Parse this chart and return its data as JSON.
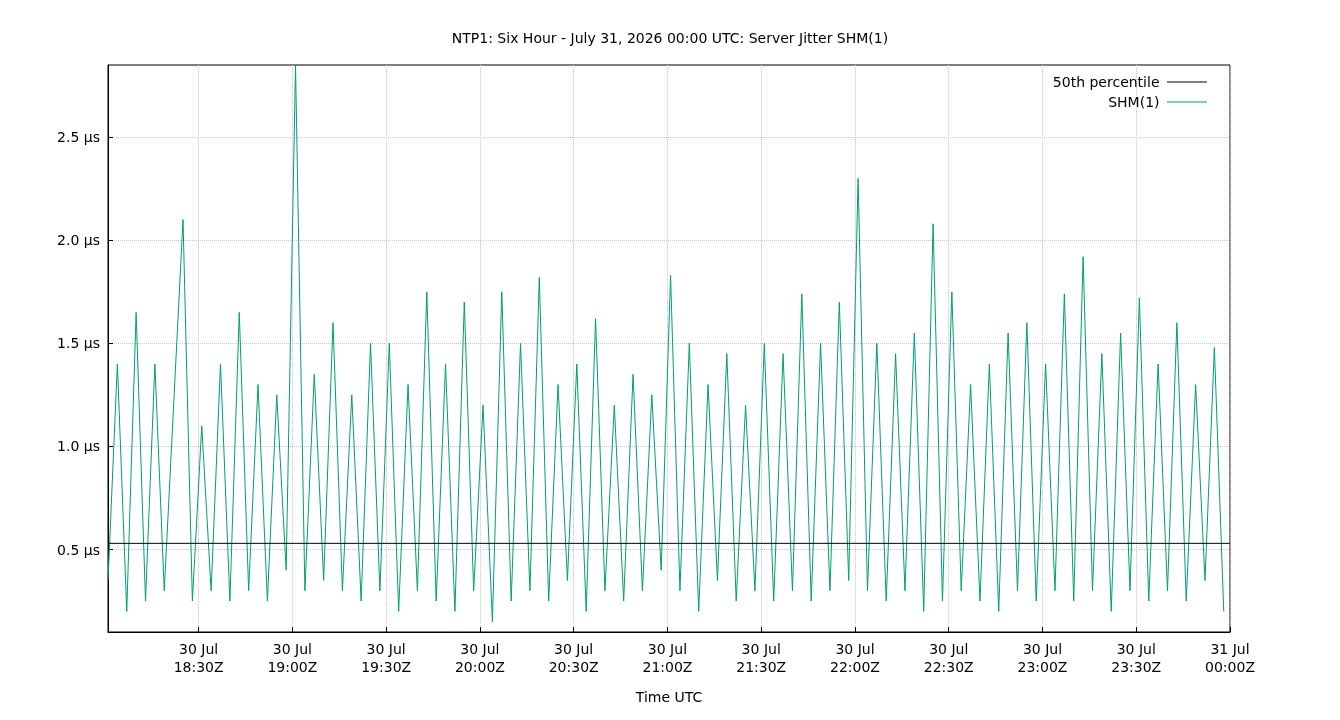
{
  "chart_data": {
    "type": "line",
    "title": "NTP1: Six Hour - July 31, 2026 00:00 UTC: Server Jitter SHM(1)",
    "xlabel": "Time UTC",
    "xlim": [
      "2026-07-30T18:01",
      "2026-07-31T00:00"
    ],
    "xticks": [
      {
        "value": "2026-07-30T18:30",
        "label": "30 Jul\n18:30Z"
      },
      {
        "value": "2026-07-30T19:00",
        "label": "30 Jul\n19:00Z"
      },
      {
        "value": "2026-07-30T19:30",
        "label": "30 Jul\n19:30Z"
      },
      {
        "value": "2026-07-30T20:00",
        "label": "30 Jul\n20:00Z"
      },
      {
        "value": "2026-07-30T20:30",
        "label": "30 Jul\n20:30Z"
      },
      {
        "value": "2026-07-30T21:00",
        "label": "30 Jul\n21:00Z"
      },
      {
        "value": "2026-07-30T21:30",
        "label": "30 Jul\n21:30Z"
      },
      {
        "value": "2026-07-30T22:00",
        "label": "30 Jul\n22:00Z"
      },
      {
        "value": "2026-07-30T22:30",
        "label": "30 Jul\n22:30Z"
      },
      {
        "value": "2026-07-30T23:00",
        "label": "30 Jul\n23:00Z"
      },
      {
        "value": "2026-07-30T23:30",
        "label": "30 Jul\n23:30Z"
      },
      {
        "value": "2026-07-31T00:00",
        "label": "31 Jul\n00:00Z"
      }
    ],
    "ylim": [
      0.1,
      2.85
    ],
    "yticks": [
      {
        "value": 0.5,
        "label": "0.5 µs"
      },
      {
        "value": 1,
        "label": "1.0 µs"
      },
      {
        "value": 1.5,
        "label": "1.5 µs"
      },
      {
        "value": 2,
        "label": "2.0 µs"
      },
      {
        "value": 2.5,
        "label": "2.5 µs"
      }
    ],
    "grid": true,
    "legend": "top right",
    "marker": "none",
    "line_style": "solid",
    "series": [
      {
        "name": "50th percentile",
        "color": "#000000",
        "x": [
          "2026-07-30T18:01",
          "2026-07-31T00:00"
        ],
        "values": [
          0.53,
          0.53
        ]
      },
      {
        "name": "SHM(1)",
        "color": "#009e73",
        "x": [
          "2026-07-30T18:01",
          "2026-07-30T18:04",
          "2026-07-30T18:07",
          "2026-07-30T18:10",
          "2026-07-30T18:13",
          "2026-07-30T18:16",
          "2026-07-30T18:19",
          "2026-07-30T18:22",
          "2026-07-30T18:25",
          "2026-07-30T18:28",
          "2026-07-30T18:31",
          "2026-07-30T18:34",
          "2026-07-30T18:37",
          "2026-07-30T18:40",
          "2026-07-30T18:43",
          "2026-07-30T18:46",
          "2026-07-30T18:49",
          "2026-07-30T18:52",
          "2026-07-30T18:55",
          "2026-07-30T18:58",
          "2026-07-30T19:01",
          "2026-07-30T19:04",
          "2026-07-30T19:07",
          "2026-07-30T19:10",
          "2026-07-30T19:13",
          "2026-07-30T19:16",
          "2026-07-30T19:19",
          "2026-07-30T19:22",
          "2026-07-30T19:25",
          "2026-07-30T19:28",
          "2026-07-30T19:31",
          "2026-07-30T19:34",
          "2026-07-30T19:37",
          "2026-07-30T19:40",
          "2026-07-30T19:43",
          "2026-07-30T19:46",
          "2026-07-30T19:49",
          "2026-07-30T19:52",
          "2026-07-30T19:55",
          "2026-07-30T19:58",
          "2026-07-30T20:01",
          "2026-07-30T20:04",
          "2026-07-30T20:07",
          "2026-07-30T20:10",
          "2026-07-30T20:13",
          "2026-07-30T20:16",
          "2026-07-30T20:19",
          "2026-07-30T20:22",
          "2026-07-30T20:25",
          "2026-07-30T20:28",
          "2026-07-30T20:31",
          "2026-07-30T20:34",
          "2026-07-30T20:37",
          "2026-07-30T20:40",
          "2026-07-30T20:43",
          "2026-07-30T20:46",
          "2026-07-30T20:49",
          "2026-07-30T20:52",
          "2026-07-30T20:55",
          "2026-07-30T20:58",
          "2026-07-30T21:01",
          "2026-07-30T21:04",
          "2026-07-30T21:07",
          "2026-07-30T21:10",
          "2026-07-30T21:13",
          "2026-07-30T21:16",
          "2026-07-30T21:19",
          "2026-07-30T21:22",
          "2026-07-30T21:25",
          "2026-07-30T21:28",
          "2026-07-30T21:31",
          "2026-07-30T21:34",
          "2026-07-30T21:37",
          "2026-07-30T21:40",
          "2026-07-30T21:43",
          "2026-07-30T21:46",
          "2026-07-30T21:49",
          "2026-07-30T21:52",
          "2026-07-30T21:55",
          "2026-07-30T21:58",
          "2026-07-30T22:01",
          "2026-07-30T22:04",
          "2026-07-30T22:07",
          "2026-07-30T22:10",
          "2026-07-30T22:13",
          "2026-07-30T22:16",
          "2026-07-30T22:19",
          "2026-07-30T22:22",
          "2026-07-30T22:25",
          "2026-07-30T22:28",
          "2026-07-30T22:31",
          "2026-07-30T22:34",
          "2026-07-30T22:37",
          "2026-07-30T22:40",
          "2026-07-30T22:43",
          "2026-07-30T22:46",
          "2026-07-30T22:49",
          "2026-07-30T22:52",
          "2026-07-30T22:55",
          "2026-07-30T22:58",
          "2026-07-30T23:01",
          "2026-07-30T23:04",
          "2026-07-30T23:07",
          "2026-07-30T23:10",
          "2026-07-30T23:13",
          "2026-07-30T23:16",
          "2026-07-30T23:19",
          "2026-07-30T23:22",
          "2026-07-30T23:25",
          "2026-07-30T23:28",
          "2026-07-30T23:31",
          "2026-07-30T23:34",
          "2026-07-30T23:37",
          "2026-07-30T23:40",
          "2026-07-30T23:43",
          "2026-07-30T23:46",
          "2026-07-30T23:49",
          "2026-07-30T23:52",
          "2026-07-30T23:55",
          "2026-07-30T23:58"
        ],
        "values": [
          0.35,
          1.4,
          0.2,
          1.65,
          0.25,
          1.4,
          0.3,
          1.2,
          2.1,
          0.25,
          1.1,
          0.3,
          1.4,
          0.25,
          1.65,
          0.3,
          1.3,
          0.25,
          1.25,
          0.4,
          2.85,
          0.3,
          1.35,
          0.35,
          1.6,
          0.3,
          1.25,
          0.25,
          1.5,
          0.3,
          1.5,
          0.2,
          1.3,
          0.3,
          1.75,
          0.25,
          1.4,
          0.2,
          1.7,
          0.3,
          1.2,
          0.15,
          1.75,
          0.25,
          1.5,
          0.3,
          1.82,
          0.25,
          1.3,
          0.35,
          1.4,
          0.2,
          1.62,
          0.3,
          1.2,
          0.25,
          1.35,
          0.3,
          1.25,
          0.4,
          1.83,
          0.3,
          1.5,
          0.2,
          1.3,
          0.35,
          1.45,
          0.25,
          1.2,
          0.3,
          1.5,
          0.25,
          1.45,
          0.3,
          1.74,
          0.25,
          1.5,
          0.3,
          1.7,
          0.35,
          2.3,
          0.3,
          1.5,
          0.25,
          1.45,
          0.3,
          1.55,
          0.2,
          2.08,
          0.25,
          1.75,
          0.3,
          1.3,
          0.25,
          1.4,
          0.2,
          1.55,
          0.3,
          1.6,
          0.25,
          1.4,
          0.3,
          1.74,
          0.25,
          1.92,
          0.3,
          1.45,
          0.2,
          1.55,
          0.3,
          1.72,
          0.25,
          1.4,
          0.3,
          1.6,
          0.25,
          1.3,
          0.35,
          1.48,
          0.2
        ]
      }
    ]
  }
}
